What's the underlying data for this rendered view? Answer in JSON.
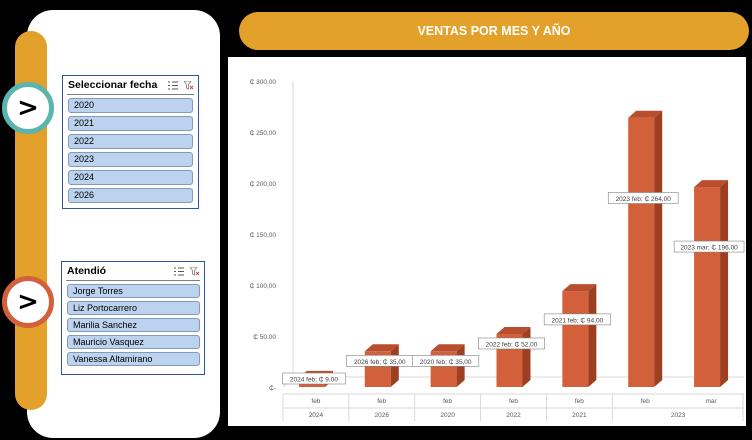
{
  "slicer_fecha": {
    "title": "Seleccionar fecha",
    "items": [
      "2020",
      "2021",
      "2022",
      "2023",
      "2024",
      "2026"
    ]
  },
  "slicer_atendio": {
    "title": "Atendió",
    "items": [
      "Jorge Torres",
      "Liz Portocarrero",
      "Marilia Sanchez",
      "Mauricio Vasquez",
      "Vanessa Altamirano"
    ]
  },
  "nav": {
    "arrow1": ">",
    "arrow2": ">"
  },
  "banner": {
    "title": "VENTAS POR MES Y AÑO"
  },
  "colors": {
    "accent": "#E3A02B",
    "bar": "#D2603A",
    "bar_side": "#9E3F22",
    "bar_top": "#B84E2E",
    "slicer_item": "#BCD2EE"
  },
  "chart_data": {
    "type": "bar",
    "title": "",
    "ylim": [
      0,
      300
    ],
    "yticks": [
      {
        "value": 0,
        "label": "₵-"
      },
      {
        "value": 50,
        "label": "₵ 50,00"
      },
      {
        "value": 100,
        "label": "₵ 100,00"
      },
      {
        "value": 150,
        "label": "₵ 150,00"
      },
      {
        "value": 200,
        "label": "₵ 200,00"
      },
      {
        "value": 250,
        "label": "₵ 250,00"
      },
      {
        "value": 300,
        "label": "₵ 300,00"
      }
    ],
    "bars": [
      {
        "month": "feb",
        "year": "2024",
        "value": 9,
        "label": "2024 feb; ₵ 9,00"
      },
      {
        "month": "feb",
        "year": "2026",
        "value": 35,
        "label": "2026 feb; ₵ 35,00"
      },
      {
        "month": "feb",
        "year": "2020",
        "value": 35,
        "label": "2020 feb; ₵ 35,00"
      },
      {
        "month": "feb",
        "year": "2022",
        "value": 52,
        "label": "2022 feb; ₵ 52,00"
      },
      {
        "month": "feb",
        "year": "2021",
        "value": 94,
        "label": "2021 feb; ₵ 94,00"
      },
      {
        "month": "feb",
        "year": "2023",
        "value": 264,
        "label": "2023 feb; ₵ 264,00"
      },
      {
        "month": "mar",
        "year": "2023",
        "value": 196,
        "label": "2023 mar; ₵ 196,00"
      }
    ],
    "year_groups": [
      {
        "year": "2024",
        "count": 1
      },
      {
        "year": "2026",
        "count": 1
      },
      {
        "year": "2020",
        "count": 1
      },
      {
        "year": "2022",
        "count": 1
      },
      {
        "year": "2021",
        "count": 1
      },
      {
        "year": "2023",
        "count": 2
      }
    ],
    "grid": false,
    "legend": "none"
  }
}
